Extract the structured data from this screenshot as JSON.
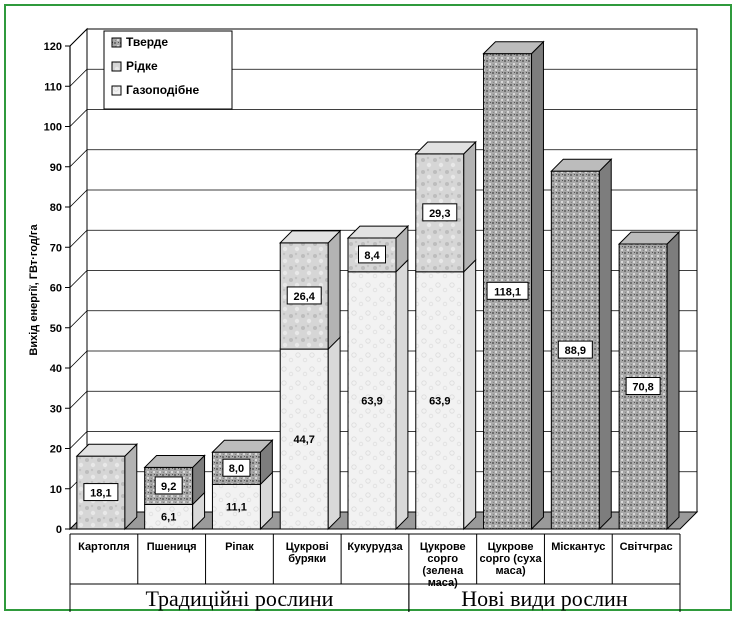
{
  "chart_data": {
    "type": "bar",
    "stacked": true,
    "three_d": true,
    "ylabel": "Вихід енергії, ГВт·год/га",
    "ylim": [
      0,
      120
    ],
    "yticks": [
      0,
      10,
      20,
      30,
      40,
      50,
      60,
      70,
      80,
      90,
      100,
      110,
      120
    ],
    "grid": true,
    "legend_position": "top-left",
    "categories": [
      [
        "Картопля"
      ],
      [
        "Пшениця"
      ],
      [
        "Ріпак"
      ],
      [
        "Цукрові",
        "буряки"
      ],
      [
        "Кукурудза"
      ],
      [
        "Цукрове",
        "сорго",
        "(зелена",
        "маса)"
      ],
      [
        "Цукрове",
        "сорго (суха",
        "маса)"
      ],
      [
        "Міскантус"
      ],
      [
        "Світчграс"
      ]
    ],
    "series": [
      {
        "name": "Газоподібне",
        "color": "#efefef",
        "values": [
          0,
          6.1,
          11.1,
          44.7,
          63.9,
          63.9,
          0,
          0,
          0
        ],
        "labels": [
          "",
          "6,1",
          "11,1",
          "44,7",
          "63,9",
          "63,9",
          "",
          "",
          ""
        ]
      },
      {
        "name": "Рідке",
        "color": "#cfcfcf",
        "values": [
          18.1,
          0,
          0,
          26.4,
          8.4,
          29.3,
          0,
          0,
          0
        ],
        "labels": [
          "18,1",
          "",
          "",
          "26,4",
          "8,4",
          "29,3",
          "",
          "",
          ""
        ]
      },
      {
        "name": "Тверде",
        "color": "#a9a9a9",
        "values": [
          0,
          9.2,
          8.0,
          0,
          0,
          0,
          118.1,
          88.9,
          70.8
        ],
        "labels": [
          "",
          "9,2",
          "8,0",
          "",
          "",
          "",
          "118,1",
          "88,9",
          "70,8"
        ]
      }
    ],
    "groups": [
      {
        "label": "Традиційні рослини",
        "count": 5
      },
      {
        "label": "Нові види рослин",
        "count": 4
      }
    ]
  }
}
